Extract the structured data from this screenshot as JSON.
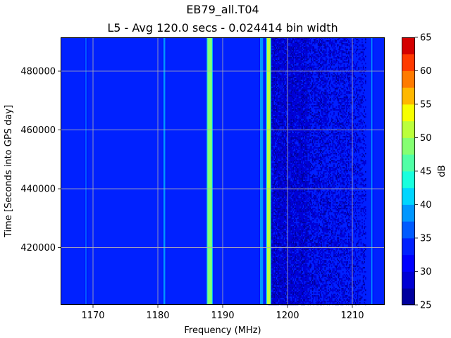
{
  "chart_data": {
    "type": "heatmap",
    "title": "EB79_all.T04",
    "subtitle": "L5 - Avg 120.0 secs - 0.024414 bin width",
    "xlabel": "Frequency (MHz)",
    "ylabel": "Time [Seconds into GPS day]",
    "xlim": [
      1165,
      1215
    ],
    "ylim": [
      400500,
      491500
    ],
    "x_ticks": [
      1170,
      1180,
      1190,
      1200,
      1210
    ],
    "y_ticks": [
      420000,
      440000,
      460000,
      480000
    ],
    "x_tick_labels": [
      "1170",
      "1180",
      "1190",
      "1200",
      "1210"
    ],
    "y_tick_labels": [
      "420000",
      "440000",
      "460000",
      "480000"
    ],
    "grid": true,
    "background_level_db": 33.5,
    "colorbar": {
      "label": "dB",
      "min": 25,
      "max": 65,
      "step": 2.5,
      "ticks": [
        25,
        30,
        35,
        40,
        45,
        50,
        55,
        60,
        65
      ],
      "tick_labels": [
        "25",
        "30",
        "35",
        "40",
        "45",
        "50",
        "55",
        "60",
        "65"
      ],
      "colors": [
        "#00009f",
        "#0000d4",
        "#0000ff",
        "#0021ff",
        "#005bff",
        "#0097ff",
        "#00d6ff",
        "#19ffde",
        "#51ffa6",
        "#85ff72",
        "#bbff3c",
        "#f7ff00",
        "#ffb800",
        "#ff7b00",
        "#ff3a00",
        "#d40000"
      ]
    },
    "signals": [
      {
        "center_mhz": 1168.9,
        "width_mhz": 0.25,
        "level_db": 36
      },
      {
        "center_mhz": 1181.0,
        "width_mhz": 0.3,
        "level_db": 38
      },
      {
        "center_mhz": 1188.0,
        "width_mhz": 0.7,
        "level_db": 48
      },
      {
        "center_mhz": 1196.0,
        "width_mhz": 0.5,
        "level_db": 38
      },
      {
        "center_mhz": 1197.1,
        "width_mhz": 0.5,
        "level_db": 50
      },
      {
        "center_mhz": 1213.0,
        "width_mhz": 0.2,
        "level_db": 38
      }
    ],
    "low_noise_region_mhz": [
      1197,
      1212
    ],
    "low_noise_level_db": 29
  }
}
